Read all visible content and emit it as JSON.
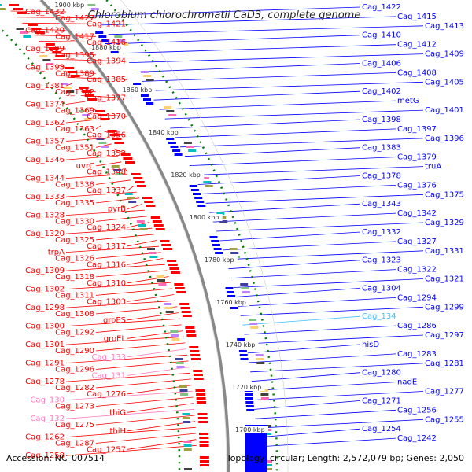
{
  "title": "Chlorobium chlorochromatii CaD3, complete genome",
  "accession": "Accession: NC_007514",
  "topology": "Topology: circular; Length: 2,572,079 bp; Genes: 2,050",
  "colors": {
    "forward": "#ff0000",
    "reverse": "#0000ff",
    "rna_forward": "#ff80c0",
    "rna_reverse": "#40c0ff",
    "backbone": "#888888",
    "gc_dots": "#008000"
  },
  "ticks": [
    "1900 kbp",
    "1880 kbp",
    "1860 kbp",
    "1840 kbp",
    "1820 kbp",
    "1800 kbp",
    "1780 kbp",
    "1760 kbp",
    "1740 kbp",
    "1720 kbp",
    "1700 kbp"
  ],
  "left_labels": [
    {
      "text": "Cag_1432",
      "kind": "fwd"
    },
    {
      "text": "Cag_1427",
      "kind": "fwd"
    },
    {
      "text": "Cag_1421",
      "kind": "fwd"
    },
    {
      "text": "Cag_1420",
      "kind": "fwd"
    },
    {
      "text": "Cag_1417",
      "kind": "fwd"
    },
    {
      "text": "Cag_1416",
      "kind": "fwd"
    },
    {
      "text": "Cag_1399",
      "kind": "fwd"
    },
    {
      "text": "Cag_1395",
      "kind": "fwd"
    },
    {
      "text": "Cag_1394",
      "kind": "fwd"
    },
    {
      "text": "Cag_1393",
      "kind": "fwd"
    },
    {
      "text": "Cag_1389",
      "kind": "fwd"
    },
    {
      "text": "Cag_1385",
      "kind": "fwd"
    },
    {
      "text": "Cag_1381",
      "kind": "fwd"
    },
    {
      "text": "Cag_1382",
      "kind": "fwd"
    },
    {
      "text": "Cag_1377",
      "kind": "fwd"
    },
    {
      "text": "Cag_1374",
      "kind": "fwd"
    },
    {
      "text": "Cag_1369",
      "kind": "fwd"
    },
    {
      "text": "Cag_1370",
      "kind": "fwd"
    },
    {
      "text": "Cag_1362",
      "kind": "fwd"
    },
    {
      "text": "Cag_1363",
      "kind": "fwd"
    },
    {
      "text": "Cag_1356",
      "kind": "fwd"
    },
    {
      "text": "Cag_1357",
      "kind": "fwd"
    },
    {
      "text": "Cag_1351",
      "kind": "fwd"
    },
    {
      "text": "Cag_1352",
      "kind": "fwd"
    },
    {
      "text": "Cag_1346",
      "kind": "fwd"
    },
    {
      "text": "uvrC",
      "kind": "fwd"
    },
    {
      "text": "Cag_1348",
      "kind": "fwd"
    },
    {
      "text": "Cag_1344",
      "kind": "fwd"
    },
    {
      "text": "Cag_1338",
      "kind": "fwd"
    },
    {
      "text": "Cag_1337",
      "kind": "fwd"
    },
    {
      "text": "Cag_1333",
      "kind": "fwd"
    },
    {
      "text": "Cag_1335",
      "kind": "fwd"
    },
    {
      "text": "pyrB",
      "kind": "fwd"
    },
    {
      "text": "Cag_1328",
      "kind": "fwd"
    },
    {
      "text": "Cag_1330",
      "kind": "fwd"
    },
    {
      "text": "Cag_1324",
      "kind": "fwd"
    },
    {
      "text": "Cag_1320",
      "kind": "fwd"
    },
    {
      "text": "Cag_1325",
      "kind": "fwd"
    },
    {
      "text": "Cag_1317",
      "kind": "fwd"
    },
    {
      "text": "trpA",
      "kind": "fwd"
    },
    {
      "text": "Cag_1326",
      "kind": "fwd"
    },
    {
      "text": "Cag_1316",
      "kind": "fwd"
    },
    {
      "text": "Cag_1309",
      "kind": "fwd"
    },
    {
      "text": "Cag_1318",
      "kind": "fwd"
    },
    {
      "text": "Cag_1310",
      "kind": "fwd"
    },
    {
      "text": "Cag_1302",
      "kind": "fwd"
    },
    {
      "text": "Cag_1311",
      "kind": "fwd"
    },
    {
      "text": "Cag_1303",
      "kind": "fwd"
    },
    {
      "text": "Cag_1298",
      "kind": "fwd"
    },
    {
      "text": "Cag_1308",
      "kind": "fwd"
    },
    {
      "text": "groES",
      "kind": "fwd"
    },
    {
      "text": "Cag_1300",
      "kind": "fwd"
    },
    {
      "text": "Cag_1292",
      "kind": "fwd"
    },
    {
      "text": "groEL",
      "kind": "fwd"
    },
    {
      "text": "Cag_1301",
      "kind": "fwd"
    },
    {
      "text": "Cag_1290",
      "kind": "fwd"
    },
    {
      "text": "Cag_133",
      "kind": "rna"
    },
    {
      "text": "Cag_1291",
      "kind": "fwd"
    },
    {
      "text": "Cag_1296",
      "kind": "fwd"
    },
    {
      "text": "Cag_131",
      "kind": "rna"
    },
    {
      "text": "Cag_1278",
      "kind": "fwd"
    },
    {
      "text": "Cag_1282",
      "kind": "fwd"
    },
    {
      "text": "Cag_1276",
      "kind": "fwd"
    },
    {
      "text": "Cag_130",
      "kind": "rna"
    },
    {
      "text": "Cag_1273",
      "kind": "fwd"
    },
    {
      "text": "thiG",
      "kind": "fwd"
    },
    {
      "text": "Cag_132",
      "kind": "rna"
    },
    {
      "text": "Cag_1275",
      "kind": "fwd"
    },
    {
      "text": "thiH",
      "kind": "fwd"
    },
    {
      "text": "Cag_1262",
      "kind": "fwd"
    },
    {
      "text": "Cag_1287",
      "kind": "fwd"
    },
    {
      "text": "Cag_1257",
      "kind": "fwd"
    },
    {
      "text": "Cag_1258",
      "kind": "fwd"
    }
  ],
  "right_labels": [
    {
      "text": "Cag_1422",
      "kind": "rev"
    },
    {
      "text": "Cag_1415",
      "kind": "rev"
    },
    {
      "text": "Cag_1413",
      "kind": "rev"
    },
    {
      "text": "Cag_1410",
      "kind": "rev"
    },
    {
      "text": "Cag_1412",
      "kind": "rev"
    },
    {
      "text": "Cag_1409",
      "kind": "rev"
    },
    {
      "text": "Cag_1406",
      "kind": "rev"
    },
    {
      "text": "Cag_1408",
      "kind": "rev"
    },
    {
      "text": "Cag_1405",
      "kind": "rev"
    },
    {
      "text": "Cag_1402",
      "kind": "rev"
    },
    {
      "text": "metG",
      "kind": "rev"
    },
    {
      "text": "Cag_1401",
      "kind": "rev"
    },
    {
      "text": "Cag_1398",
      "kind": "rev"
    },
    {
      "text": "Cag_1397",
      "kind": "rev"
    },
    {
      "text": "Cag_1396",
      "kind": "rev"
    },
    {
      "text": "Cag_1383",
      "kind": "rev"
    },
    {
      "text": "Cag_1379",
      "kind": "rev"
    },
    {
      "text": "truA",
      "kind": "rev"
    },
    {
      "text": "Cag_1378",
      "kind": "rev"
    },
    {
      "text": "Cag_1376",
      "kind": "rev"
    },
    {
      "text": "Cag_1375",
      "kind": "rev"
    },
    {
      "text": "Cag_1343",
      "kind": "rev"
    },
    {
      "text": "Cag_1342",
      "kind": "rev"
    },
    {
      "text": "Cag_1329",
      "kind": "rev"
    },
    {
      "text": "Cag_1332",
      "kind": "rev"
    },
    {
      "text": "Cag_1327",
      "kind": "rev"
    },
    {
      "text": "Cag_1331",
      "kind": "rev"
    },
    {
      "text": "Cag_1323",
      "kind": "rev"
    },
    {
      "text": "Cag_1322",
      "kind": "rev"
    },
    {
      "text": "Cag_1321",
      "kind": "rev"
    },
    {
      "text": "Cag_1304",
      "kind": "rev"
    },
    {
      "text": "Cag_1294",
      "kind": "rev"
    },
    {
      "text": "Cag_1299",
      "kind": "rev"
    },
    {
      "text": "Cag_134",
      "kind": "rrev"
    },
    {
      "text": "Cag_1286",
      "kind": "rev"
    },
    {
      "text": "Cag_1297",
      "kind": "rev"
    },
    {
      "text": "hisD",
      "kind": "rev"
    },
    {
      "text": "Cag_1283",
      "kind": "rev"
    },
    {
      "text": "Cag_1281",
      "kind": "rev"
    },
    {
      "text": "Cag_1280",
      "kind": "rev"
    },
    {
      "text": "nadE",
      "kind": "rev"
    },
    {
      "text": "Cag_1277",
      "kind": "rev"
    },
    {
      "text": "Cag_1271",
      "kind": "rev"
    },
    {
      "text": "Cag_1256",
      "kind": "rev"
    },
    {
      "text": "Cag_1255",
      "kind": "rev"
    },
    {
      "text": "Cag_1254",
      "kind": "rev"
    },
    {
      "text": "Cag_1242",
      "kind": "rev"
    }
  ]
}
